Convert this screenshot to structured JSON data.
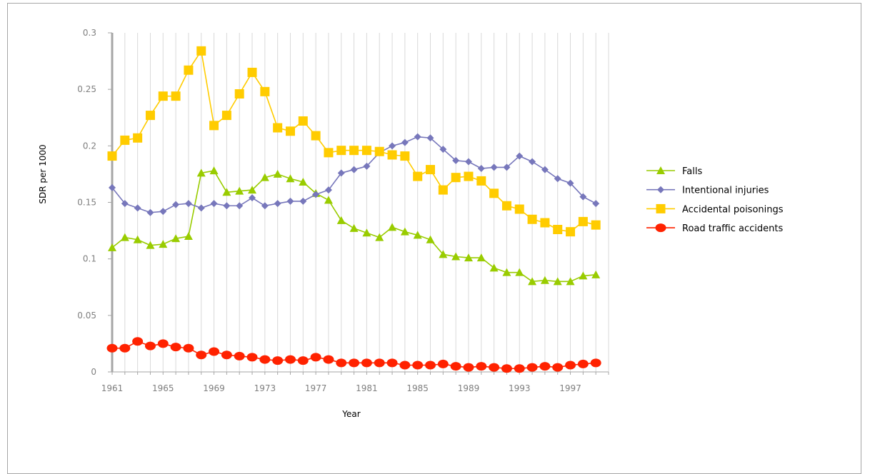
{
  "chart_data": {
    "type": "line",
    "xlabel": "Year",
    "ylabel": "SDR per 1000",
    "ylim": [
      0,
      0.3
    ],
    "yticks": [
      0,
      0.05,
      0.1,
      0.15,
      0.2,
      0.25,
      0.3
    ],
    "ytick_labels": [
      "0",
      "0.05",
      "0.1",
      "0.15",
      "0.2",
      "0.25",
      "0.3"
    ],
    "xtick_labels": [
      "1961",
      "1965",
      "1969",
      "1973",
      "1977",
      "1981",
      "1985",
      "1989",
      "1993",
      "1997"
    ],
    "x": [
      1961,
      1962,
      1963,
      1964,
      1965,
      1966,
      1967,
      1968,
      1969,
      1970,
      1971,
      1972,
      1973,
      1974,
      1975,
      1976,
      1977,
      1978,
      1979,
      1980,
      1981,
      1982,
      1983,
      1984,
      1985,
      1986,
      1987,
      1988,
      1989,
      1990,
      1991,
      1992,
      1993,
      1994,
      1995,
      1996,
      1997,
      1998,
      1999,
      2000
    ],
    "grid": "vertical",
    "legend_position": "right",
    "series": [
      {
        "name": "Falls",
        "color": "#99cc00",
        "marker": "triangle",
        "values": [
          0.11,
          0.119,
          0.117,
          0.112,
          0.113,
          0.118,
          0.12,
          0.176,
          0.178,
          0.159,
          0.16,
          0.161,
          0.172,
          0.175,
          0.171,
          0.168,
          0.158,
          0.152,
          0.134,
          0.127,
          0.123,
          0.119,
          0.128,
          0.124,
          0.121,
          0.117,
          0.104,
          0.102,
          0.101,
          0.101,
          0.092,
          0.088,
          0.088,
          0.08,
          0.081,
          0.08,
          0.08,
          0.085,
          0.086,
          null
        ]
      },
      {
        "name": "Intentional injuries",
        "color": "#7777bb",
        "marker": "diamond",
        "values": [
          0.163,
          0.149,
          0.145,
          0.141,
          0.142,
          0.148,
          0.149,
          0.145,
          0.149,
          0.147,
          0.147,
          0.154,
          0.147,
          0.149,
          0.151,
          0.151,
          0.157,
          0.161,
          0.176,
          0.179,
          0.182,
          0.194,
          0.2,
          0.203,
          0.208,
          0.207,
          0.197,
          0.187,
          0.186,
          0.18,
          0.181,
          0.181,
          0.191,
          0.186,
          0.179,
          0.171,
          0.167,
          0.155,
          0.149,
          null
        ]
      },
      {
        "name": "Accidental poisonings",
        "color": "#ffcc00",
        "marker": "square",
        "values": [
          0.191,
          0.205,
          0.207,
          0.227,
          0.244,
          0.244,
          0.267,
          0.284,
          0.218,
          0.227,
          0.246,
          0.265,
          0.248,
          0.216,
          0.213,
          0.222,
          0.209,
          0.194,
          0.196,
          0.196,
          0.196,
          0.195,
          0.192,
          0.191,
          0.173,
          0.179,
          0.161,
          0.172,
          0.173,
          0.169,
          0.158,
          0.147,
          0.144,
          0.135,
          0.132,
          0.126,
          0.124,
          0.133,
          0.13,
          null
        ]
      },
      {
        "name": "Road traffic accidents",
        "color": "#ff2200",
        "marker": "circle",
        "values": [
          0.021,
          0.021,
          0.027,
          0.023,
          0.025,
          0.022,
          0.021,
          0.015,
          0.018,
          0.015,
          0.014,
          0.013,
          0.011,
          0.01,
          0.011,
          0.01,
          0.013,
          0.011,
          0.008,
          0.008,
          0.008,
          0.008,
          0.008,
          0.006,
          0.006,
          0.006,
          0.007,
          0.005,
          0.004,
          0.005,
          0.004,
          0.003,
          0.003,
          0.004,
          0.005,
          0.004,
          0.006,
          0.007,
          0.008,
          null
        ]
      }
    ]
  }
}
